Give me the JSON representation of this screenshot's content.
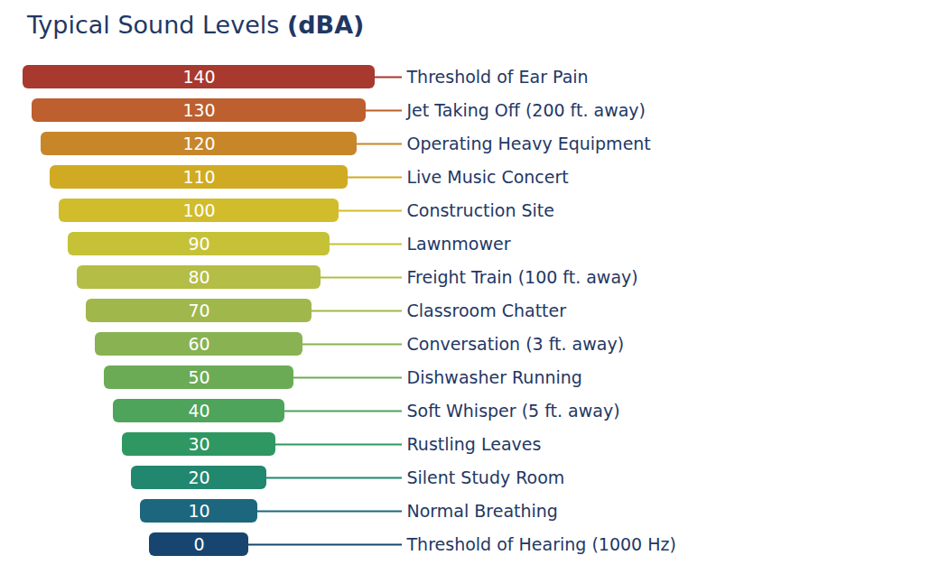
{
  "chart_data": {
    "type": "bar",
    "title": "Typical Sound Levels (dBA)",
    "orientation": "horizontal",
    "categories": [
      "Threshold of Ear Pain",
      "Jet Taking Off (200 ft. away)",
      "Operating Heavy Equipment",
      "Live Music Concert",
      "Construction Site",
      "Lawnmower",
      "Freight Train (100 ft. away)",
      "Classroom Chatter",
      "Conversation (3 ft. away)",
      "Dishwasher Running",
      "Soft Whisper (5 ft. away)",
      "Rustling Leaves",
      "Silent Study Room",
      "Normal Breathing",
      "Threshold of Hearing (1000 Hz)"
    ],
    "values": [
      140,
      130,
      120,
      110,
      100,
      90,
      80,
      70,
      60,
      50,
      40,
      30,
      20,
      10,
      0
    ],
    "colors": [
      "#a8392f",
      "#bd5f2e",
      "#c8862a",
      "#d0aa22",
      "#d1bc2b",
      "#c6c238",
      "#b4bd45",
      "#a0b74c",
      "#89b252",
      "#6cab56",
      "#4ea45b",
      "#2f9862",
      "#22876f",
      "#1c677e",
      "#17456f"
    ],
    "data_labels": true,
    "tick_labels": false
  }
}
